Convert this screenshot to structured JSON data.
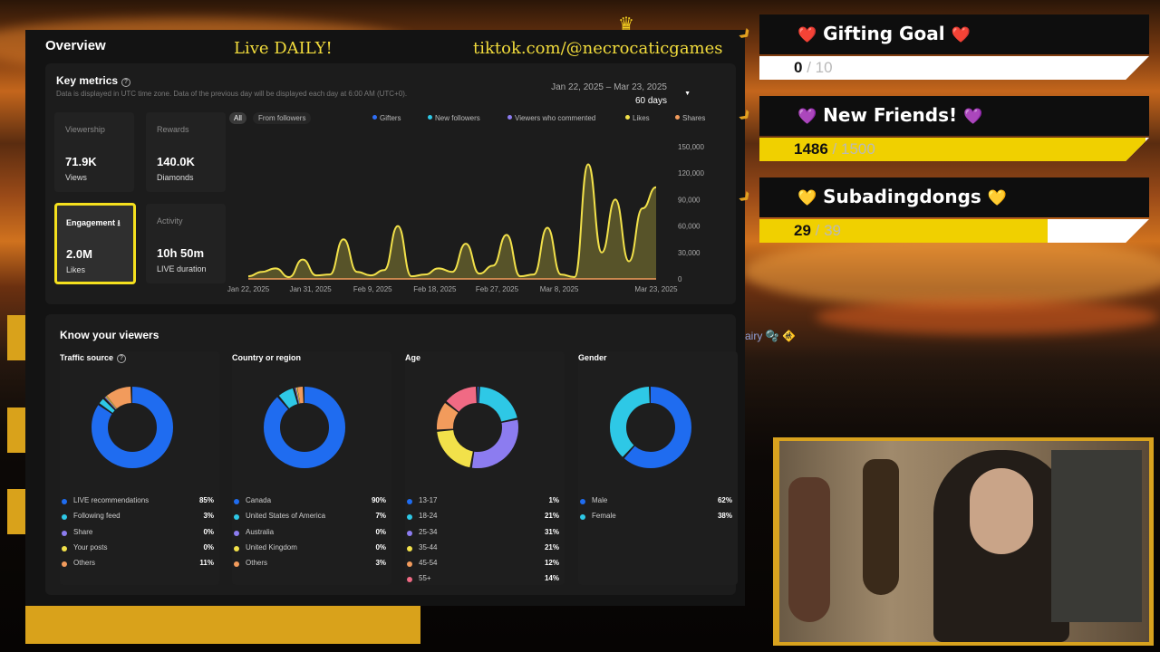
{
  "overlay": {
    "live_text": "Live DAILY!",
    "tiktok_handle": "tiktok.com/@necrocaticgames",
    "chat_snippet": "airy 🫧 🚸"
  },
  "overview": {
    "title": "Overview",
    "key_metrics": {
      "title": "Key metrics",
      "subtitle": "Data is displayed in UTC time zone. Data of the previous day will be displayed each day at 6:00 AM (UTC+0).",
      "date_range": "Jan 22, 2025 – Mar 23, 2025",
      "days": "60 days",
      "metrics": [
        {
          "label": "Viewership",
          "value": "71.9K",
          "unit": "Views"
        },
        {
          "label": "Rewards",
          "value": "140.0K",
          "unit": "Diamonds"
        },
        {
          "label": "Engagement ⭳",
          "value": "2.0M",
          "unit": "Likes"
        },
        {
          "label": "Activity",
          "value": "10h 50m",
          "unit": "LIVE duration"
        }
      ],
      "filters": {
        "all": "All",
        "followers": "From followers"
      },
      "legend": [
        {
          "name": "Gifters",
          "color": "#2f6ef5"
        },
        {
          "name": "New followers",
          "color": "#2ec8e6"
        },
        {
          "name": "Viewers who commented",
          "color": "#8c7cf0"
        },
        {
          "name": "Likes",
          "color": "#f2e14a"
        },
        {
          "name": "Shares",
          "color": "#f29b5c"
        }
      ]
    },
    "know_viewers": {
      "title": "Know your viewers",
      "traffic": {
        "title": "Traffic source",
        "rows": [
          {
            "label": "LIVE recommendations",
            "pct": "85%",
            "value": 85,
            "color": "#1f6cf0"
          },
          {
            "label": "Following feed",
            "pct": "3%",
            "value": 3,
            "color": "#2ec8e6"
          },
          {
            "label": "Share",
            "pct": "0%",
            "value": 0.5,
            "color": "#8c7cf0"
          },
          {
            "label": "Your posts",
            "pct": "0%",
            "value": 0.5,
            "color": "#f2e14a"
          },
          {
            "label": "Others",
            "pct": "11%",
            "value": 11,
            "color": "#f29b5c"
          }
        ]
      },
      "country": {
        "title": "Country or region",
        "rows": [
          {
            "label": "Canada",
            "pct": "90%",
            "value": 90,
            "color": "#1f6cf0"
          },
          {
            "label": "United States of America",
            "pct": "7%",
            "value": 7,
            "color": "#2ec8e6"
          },
          {
            "label": "Australia",
            "pct": "0%",
            "value": 0.5,
            "color": "#8c7cf0"
          },
          {
            "label": "United Kingdom",
            "pct": "0%",
            "value": 0.5,
            "color": "#f2e14a"
          },
          {
            "label": "Others",
            "pct": "3%",
            "value": 3,
            "color": "#f29b5c"
          }
        ]
      },
      "age": {
        "title": "Age",
        "rows": [
          {
            "label": "13-17",
            "pct": "1%",
            "value": 1,
            "color": "#1f6cf0"
          },
          {
            "label": "18-24",
            "pct": "21%",
            "value": 21,
            "color": "#2ec8e6"
          },
          {
            "label": "25-34",
            "pct": "31%",
            "value": 31,
            "color": "#8c7cf0"
          },
          {
            "label": "35-44",
            "pct": "21%",
            "value": 21,
            "color": "#f2e14a"
          },
          {
            "label": "45-54",
            "pct": "12%",
            "value": 12,
            "color": "#f29b5c"
          },
          {
            "label": "55+",
            "pct": "14%",
            "value": 14,
            "color": "#f06a84"
          }
        ]
      },
      "gender": {
        "title": "Gender",
        "rows": [
          {
            "label": "Male",
            "pct": "62%",
            "value": 62,
            "color": "#1f6cf0"
          },
          {
            "label": "Female",
            "pct": "38%",
            "value": 38,
            "color": "#2ec8e6"
          }
        ]
      }
    }
  },
  "chart_data": {
    "type": "area",
    "series": [
      {
        "name": "Likes",
        "color": "#f2e14a"
      }
    ],
    "x": [
      "Jan 22",
      "Jan 24",
      "Jan 26",
      "Jan 28",
      "Jan 30",
      "Feb 1",
      "Feb 3",
      "Feb 5",
      "Feb 7",
      "Feb 9",
      "Feb 11",
      "Feb 13",
      "Feb 15",
      "Feb 17",
      "Feb 19",
      "Feb 21",
      "Feb 23",
      "Feb 25",
      "Feb 27",
      "Mar 1",
      "Mar 3",
      "Mar 5",
      "Mar 7",
      "Mar 9",
      "Mar 11",
      "Mar 13",
      "Mar 15",
      "Mar 17",
      "Mar 19",
      "Mar 21",
      "Mar 23"
    ],
    "values": [
      3000,
      8000,
      12000,
      2000,
      22000,
      4000,
      5000,
      45000,
      8000,
      4000,
      10000,
      60000,
      3000,
      5000,
      12000,
      8000,
      40000,
      6000,
      15000,
      50000,
      3000,
      5000,
      58000,
      5000,
      2000,
      130000,
      30000,
      90000,
      20000,
      80000,
      104000
    ],
    "x_ticks": [
      "Jan 22, 2025",
      "Jan 31, 2025",
      "Feb 9, 2025",
      "Feb 18, 2025",
      "Feb 27, 2025",
      "Mar 8, 2025",
      "Mar 23, 2025"
    ],
    "y_ticks": [
      "150,000",
      "120,000",
      "90,000",
      "60,000",
      "30,000",
      "0"
    ],
    "ylim": [
      0,
      150000
    ]
  },
  "goals": [
    {
      "title": "Gifting Goal",
      "heart": "❤️",
      "current": "0",
      "target": "10",
      "fraction": 0.0
    },
    {
      "title": "New Friends!",
      "heart": "💜",
      "current": "1486",
      "target": "1500",
      "fraction": 0.99
    },
    {
      "title": "Subadingdongs",
      "heart": "💛",
      "current": "29",
      "target": "39",
      "fraction": 0.74
    }
  ]
}
